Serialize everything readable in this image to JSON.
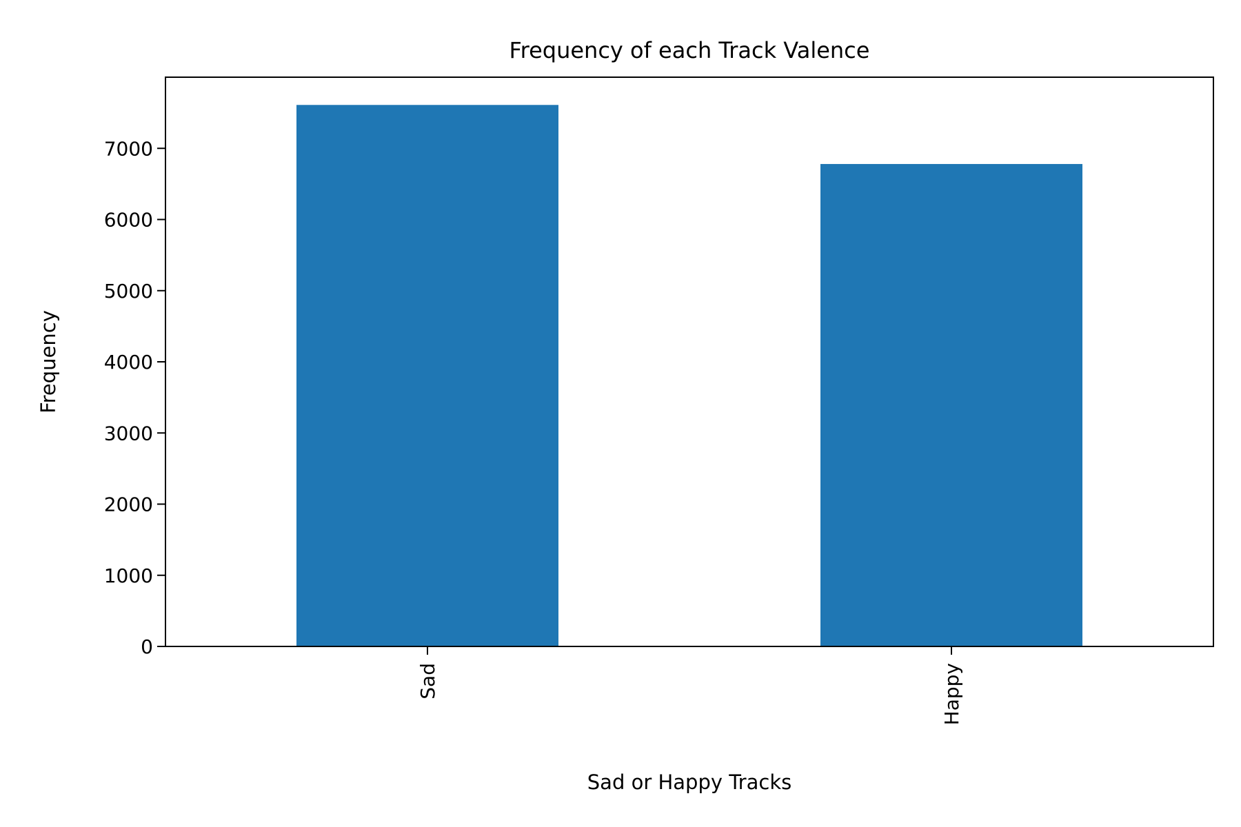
{
  "chart_data": {
    "type": "bar",
    "title": "Frequency of each Track Valence",
    "xlabel": "Sad or Happy Tracks",
    "ylabel": "Frequency",
    "categories": [
      "Sad",
      "Happy"
    ],
    "values": [
      7610,
      6780
    ],
    "ylim": [
      0,
      8000
    ],
    "yticks": [
      0,
      1000,
      2000,
      3000,
      4000,
      5000,
      6000,
      7000
    ],
    "ytick_labels": [
      "0",
      "1000",
      "2000",
      "3000",
      "4000",
      "5000",
      "6000",
      "7000"
    ],
    "bar_color": "#1f77b4",
    "grid": false,
    "legend": "none"
  }
}
